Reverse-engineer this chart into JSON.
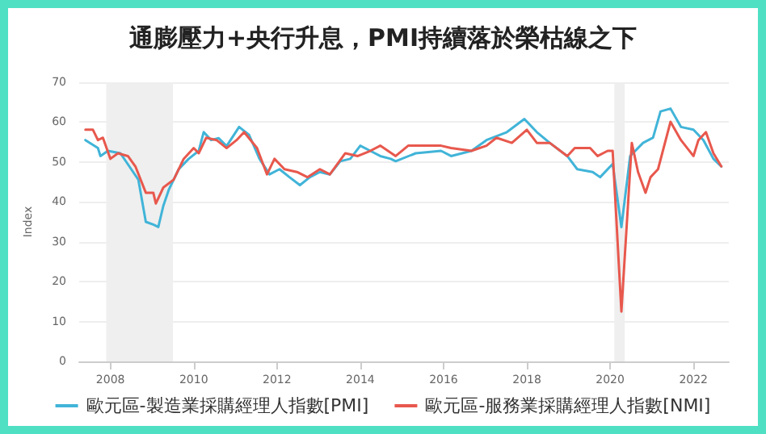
{
  "chart_data": {
    "type": "line",
    "title": "通膨壓力+央行升息，PMI持續落於榮枯線之下",
    "ylabel": "Index",
    "xlim": [
      2007.25,
      2022.85
    ],
    "xticks": [
      2008,
      2010,
      2012,
      2014,
      2016,
      2018,
      2020,
      2022
    ],
    "ylim": [
      0,
      70
    ],
    "yticks": [
      0,
      10,
      20,
      30,
      40,
      50,
      60,
      70
    ],
    "grid": "y",
    "legend": "bottom",
    "marker": "none",
    "line_style": "solid",
    "bands": [
      {
        "axis": "x",
        "from": 2007.9,
        "to": 2009.5,
        "color": "#efefef"
      },
      {
        "axis": "x",
        "from": 2020.1,
        "to": 2020.35,
        "color": "#efefef"
      }
    ],
    "series": [
      {
        "name": "歐元區-製造業採購經理人指數[PMI]",
        "color": "#41b4d8",
        "x": [
          2007.4,
          2007.7,
          2007.76,
          2007.94,
          2008.24,
          2008.5,
          2008.67,
          2008.85,
          2009.03,
          2009.15,
          2009.27,
          2009.4,
          2009.64,
          2009.88,
          2010.12,
          2010.24,
          2010.42,
          2010.6,
          2010.79,
          2011.09,
          2011.33,
          2011.58,
          2011.82,
          2012.06,
          2012.3,
          2012.55,
          2012.79,
          2013.03,
          2013.27,
          2013.52,
          2013.76,
          2014.0,
          2014.24,
          2014.48,
          2014.73,
          2014.85,
          2015.33,
          2015.94,
          2016.18,
          2016.67,
          2017.03,
          2017.52,
          2017.94,
          2018.24,
          2018.55,
          2018.97,
          2019.21,
          2019.58,
          2019.76,
          2020.06,
          2020.27,
          2020.48,
          2020.79,
          2021.03,
          2021.21,
          2021.45,
          2021.7,
          2022.0,
          2022.24,
          2022.48,
          2022.67
        ],
        "values": [
          55.5,
          53.5,
          51.5,
          52.8,
          52.2,
          48.2,
          45.6,
          35,
          34.3,
          33.7,
          39,
          43,
          48.2,
          50.8,
          52.8,
          57.5,
          55.5,
          56,
          54,
          58.8,
          56.8,
          50.8,
          46.9,
          48.2,
          46.2,
          44.2,
          46.2,
          47.5,
          46.9,
          50.2,
          50.8,
          54.1,
          52.8,
          51.5,
          50.8,
          50.2,
          52.2,
          52.8,
          51.5,
          52.8,
          55.5,
          57.5,
          60.8,
          57.5,
          54.8,
          51.5,
          48.2,
          47.5,
          46.2,
          49.5,
          33.7,
          51.5,
          54.8,
          56.1,
          62.7,
          63.4,
          58.8,
          58.1,
          55.5,
          50.8,
          48.9
        ]
      },
      {
        "name": "歐元區-服務業採購經理人指數[NMI]",
        "color": "#e8584d",
        "x": [
          2007.4,
          2007.58,
          2007.7,
          2007.82,
          2008.0,
          2008.18,
          2008.42,
          2008.6,
          2008.85,
          2009.03,
          2009.09,
          2009.27,
          2009.52,
          2009.76,
          2010.0,
          2010.12,
          2010.3,
          2010.55,
          2010.79,
          2011.03,
          2011.21,
          2011.52,
          2011.76,
          2011.94,
          2012.18,
          2012.48,
          2012.73,
          2013.03,
          2013.27,
          2013.64,
          2013.94,
          2014.24,
          2014.48,
          2014.85,
          2015.15,
          2015.58,
          2015.94,
          2016.18,
          2016.67,
          2017.03,
          2017.27,
          2017.64,
          2018.0,
          2018.24,
          2018.55,
          2018.97,
          2019.15,
          2019.52,
          2019.7,
          2019.94,
          2020.06,
          2020.27,
          2020.52,
          2020.67,
          2020.85,
          2020.97,
          2021.15,
          2021.45,
          2021.7,
          2022.0,
          2022.12,
          2022.3,
          2022.48,
          2022.67
        ],
        "values": [
          58.1,
          58.1,
          55.5,
          56.1,
          50.8,
          52.2,
          51.5,
          48.9,
          42.3,
          42.3,
          39.6,
          43.6,
          45.6,
          50.8,
          53.5,
          52.2,
          56.1,
          55.5,
          53.5,
          55.5,
          57.5,
          53.5,
          46.9,
          50.8,
          48.2,
          47.5,
          46.2,
          48.2,
          46.9,
          52.2,
          51.5,
          52.8,
          54.1,
          51.5,
          54.1,
          54.1,
          54.1,
          53.5,
          52.8,
          54.1,
          56.1,
          54.8,
          58.1,
          54.8,
          54.8,
          51.5,
          53.5,
          53.5,
          51.5,
          52.8,
          52.8,
          12.5,
          54.8,
          47.5,
          42.3,
          46.2,
          48.2,
          60.1,
          55.5,
          51.5,
          55.5,
          57.5,
          52.2,
          48.9
        ]
      }
    ]
  }
}
